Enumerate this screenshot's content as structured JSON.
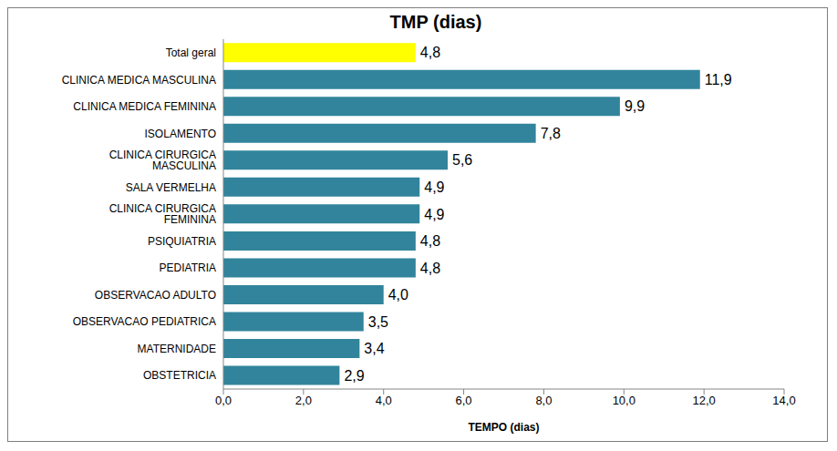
{
  "chart_data": {
    "type": "bar",
    "title": "TMP (dias)",
    "x_label": "TEMPO (dias)",
    "orientation": "horizontal",
    "categories": [
      "Total geral",
      "CLINICA MEDICA MASCULINA",
      "CLINICA MEDICA FEMININA",
      "ISOLAMENTO",
      "CLINICA CIRURGICA MASCULINA",
      "SALA VERMELHA",
      "CLINICA CIRURGICA FEMININA",
      "PSIQUIATRIA",
      "PEDIATRIA",
      "OBSERVACAO ADULTO",
      "OBSERVACAO PEDIATRICA",
      "MATERNIDADE",
      "OBSTETRICIA"
    ],
    "values": [
      4.8,
      11.9,
      9.9,
      7.8,
      5.6,
      4.9,
      4.9,
      4.8,
      4.8,
      4.0,
      3.5,
      3.4,
      2.9
    ],
    "value_labels": [
      "4,8",
      "11,9",
      "9,9",
      "7,8",
      "5,6",
      "4,9",
      "4,9",
      "4,8",
      "4,8",
      "4,0",
      "3,5",
      "3,4",
      "2,9"
    ],
    "colors": [
      "#ffff00",
      "#31849b",
      "#31849b",
      "#31849b",
      "#31849b",
      "#31849b",
      "#31849b",
      "#31849b",
      "#31849b",
      "#31849b",
      "#31849b",
      "#31849b",
      "#31849b"
    ],
    "xlim": [
      0,
      14
    ],
    "xticks": [
      {
        "value": 0,
        "label": "0,0"
      },
      {
        "value": 2,
        "label": "2,0"
      },
      {
        "value": 4,
        "label": "4,0"
      },
      {
        "value": 6,
        "label": "6,0"
      },
      {
        "value": 8,
        "label": "8,0"
      },
      {
        "value": 10,
        "label": "10,0"
      },
      {
        "value": 12,
        "label": "12,0"
      },
      {
        "value": 14,
        "label": "14,0"
      }
    ],
    "grid": false,
    "data_labels": true
  }
}
